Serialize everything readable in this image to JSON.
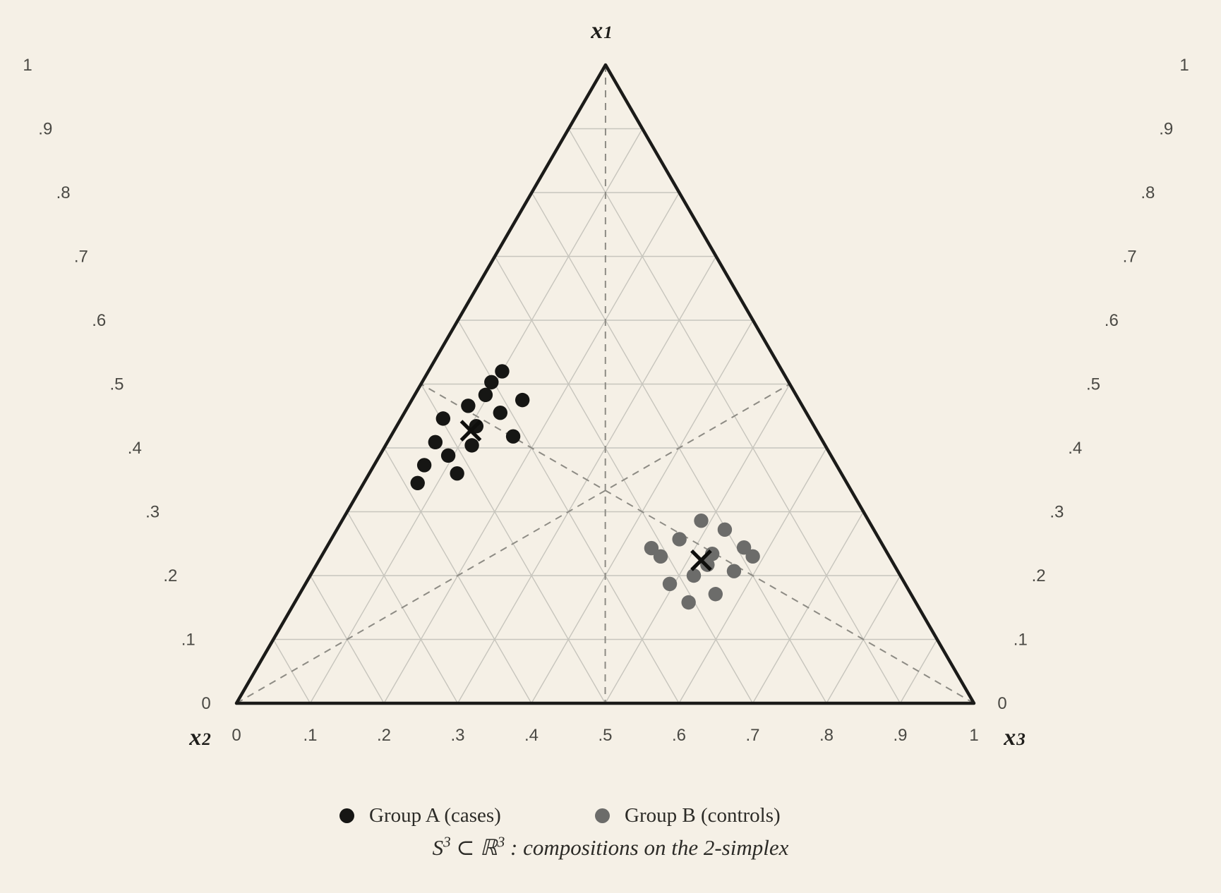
{
  "page": {
    "background": "#f5f0e6"
  },
  "axes": {
    "top": {
      "symbol": "x",
      "index": "1"
    },
    "left": {
      "symbol": "x",
      "index": "2"
    },
    "right": {
      "symbol": "x",
      "index": "3"
    }
  },
  "legend": {
    "items": [
      {
        "id": "group-a",
        "label": "Group A (cases)",
        "color": "#161614"
      },
      {
        "id": "group-b",
        "label": "Group B (controls)",
        "color": "#6c6c6a"
      }
    ]
  },
  "caption": {
    "set_symbol": "S",
    "set_sup": "3",
    "subset": " ⊂ ",
    "reals": "ℝ",
    "reals_sup": "3",
    "rest": " : compositions on the 2-simplex"
  },
  "chart_data": {
    "type": "scatter",
    "variant": "ternary",
    "title": "S3 ⊂ R3 : compositions on the 2-simplex",
    "axis_labels": {
      "top": "x1",
      "left": "x2",
      "right": "x3"
    },
    "tick_labels": [
      "0",
      ".1",
      ".2",
      ".3",
      ".4",
      ".5",
      ".6",
      ".7",
      ".8",
      ".9",
      "1"
    ],
    "axis_range": [
      0,
      1
    ],
    "grid_interval": 0.1,
    "grid_on": true,
    "show_median_dashed_lines": true,
    "legend_position": "bottom",
    "colors": {
      "grid": "#c7c5bd",
      "median": "#8d8b84",
      "border": "#1b1b19",
      "tick_text": "#4a4944",
      "centroid_marker": "#0e0e0c"
    },
    "series": [
      {
        "name": "Group A (cases)",
        "color": "#161614",
        "marker": "circle",
        "centroid_marker": "x",
        "centroid": [
          0.427,
          0.469,
          0.104
        ],
        "points": [
          [
            0.52,
            0.38,
            0.1
          ],
          [
            0.503,
            0.403,
            0.094
          ],
          [
            0.483,
            0.421,
            0.096
          ],
          [
            0.475,
            0.375,
            0.15
          ],
          [
            0.466,
            0.453,
            0.081
          ],
          [
            0.455,
            0.415,
            0.13
          ],
          [
            0.446,
            0.497,
            0.057
          ],
          [
            0.434,
            0.458,
            0.108
          ],
          [
            0.418,
            0.416,
            0.166
          ],
          [
            0.409,
            0.526,
            0.065
          ],
          [
            0.404,
            0.479,
            0.117
          ],
          [
            0.388,
            0.519,
            0.093
          ],
          [
            0.373,
            0.559,
            0.068
          ],
          [
            0.36,
            0.521,
            0.119
          ],
          [
            0.345,
            0.582,
            0.073
          ]
        ]
      },
      {
        "name": "Group B (controls)",
        "color": "#6c6c6a",
        "marker": "circle",
        "centroid_marker": "x",
        "centroid": [
          0.224,
          0.258,
          0.518
        ],
        "points": [
          [
            0.286,
            0.227,
            0.487
          ],
          [
            0.272,
            0.202,
            0.526
          ],
          [
            0.257,
            0.271,
            0.472
          ],
          [
            0.243,
            0.316,
            0.441
          ],
          [
            0.244,
            0.19,
            0.566
          ],
          [
            0.23,
            0.31,
            0.46
          ],
          [
            0.23,
            0.185,
            0.585
          ],
          [
            0.234,
            0.238,
            0.528
          ],
          [
            0.217,
            0.253,
            0.53
          ],
          [
            0.207,
            0.222,
            0.571
          ],
          [
            0.2,
            0.28,
            0.52
          ],
          [
            0.187,
            0.319,
            0.494
          ],
          [
            0.171,
            0.265,
            0.564
          ],
          [
            0.158,
            0.308,
            0.534
          ]
        ]
      }
    ]
  }
}
